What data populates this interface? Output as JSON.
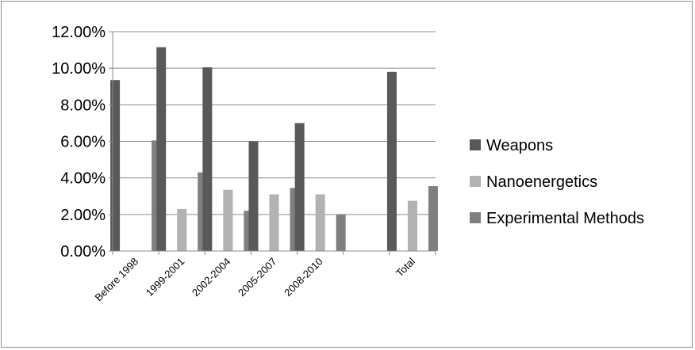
{
  "chart_data": {
    "type": "bar",
    "title": "",
    "xlabel": "",
    "ylabel": "",
    "categories": [
      "Before 1998",
      "1999-2001",
      "2002-2004",
      "2005-2007",
      "2008-2010",
      "",
      "Total"
    ],
    "series": [
      {
        "name": "Weapons",
        "color": "#595959",
        "values": [
          9.35,
          11.15,
          10.05,
          6.0,
          7.0,
          null,
          9.8
        ]
      },
      {
        "name": "Nanoenergetics",
        "color": "#b2b2b2",
        "values": [
          0,
          2.3,
          3.35,
          3.1,
          3.1,
          null,
          2.75
        ]
      },
      {
        "name": "Experimental Methods",
        "color": "#7f7f7f",
        "values": [
          6.05,
          4.3,
          2.2,
          3.45,
          2.0,
          null,
          3.55
        ]
      }
    ],
    "ylim": [
      0,
      12
    ],
    "yticks": [
      0,
      2,
      4,
      6,
      8,
      10,
      12
    ],
    "ytick_labels": [
      "0.00%",
      "2.00%",
      "4.00%",
      "6.00%",
      "8.00%",
      "10.00%",
      "12.00%"
    ],
    "grid": true,
    "legend_position": "right"
  }
}
